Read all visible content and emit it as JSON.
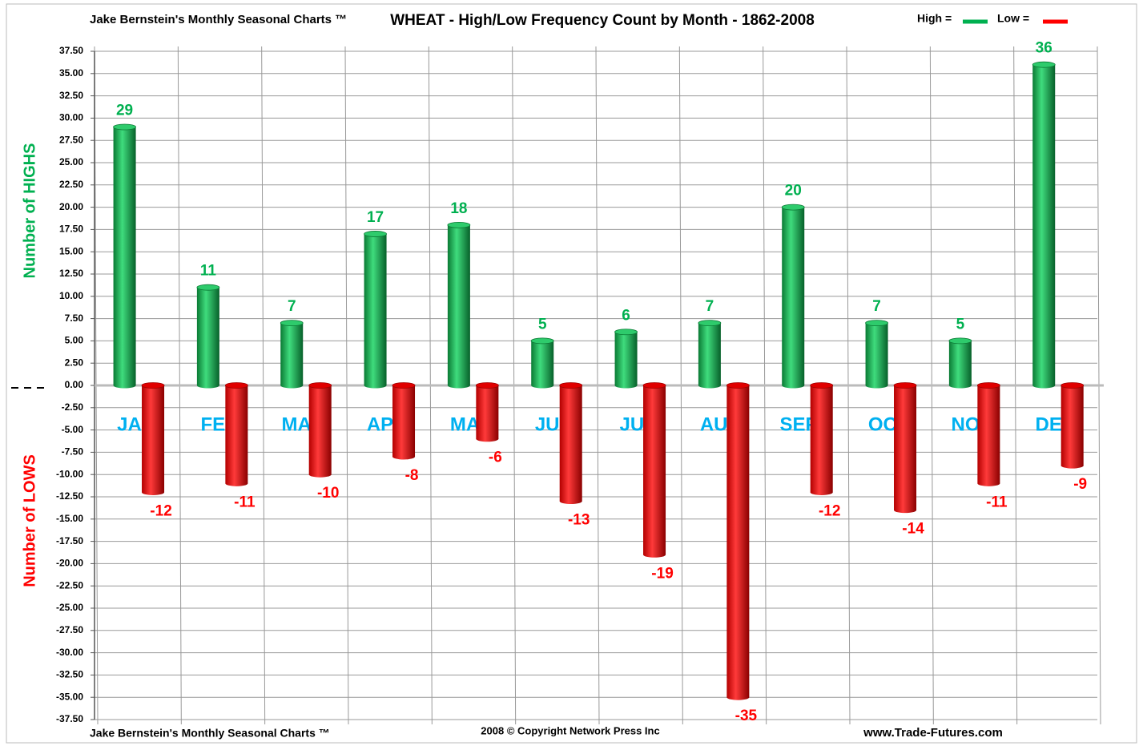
{
  "chart_data": {
    "type": "bar",
    "header": "Jake Bernstein's  Monthly Seasonal Charts ™",
    "title": "WHEAT - High/Low Frequency Count by Month - 1862-2008",
    "ylabels": [
      "Number of  HIGHS",
      "Number of  LOWS"
    ],
    "footer": [
      "Jake Bernstein's  Monthly Seasonal Charts ™",
      "2008  © Copyright Network Press Inc",
      "www.Trade-Futures.com"
    ],
    "categories": [
      "JAN",
      "FEB",
      "MAR",
      "APR",
      "MAY",
      "JUN",
      "JUL",
      "AUG",
      "SEPT",
      "OCT",
      "NOV",
      "DEC"
    ],
    "category_color": "#00b0f0",
    "series": [
      {
        "name": "High =",
        "color": "#00b050",
        "values": [
          29,
          11,
          7,
          17,
          18,
          5,
          6,
          7,
          20,
          7,
          5,
          36
        ]
      },
      {
        "name": "Low =",
        "color": "#ff0000",
        "values": [
          -12,
          -11,
          -10,
          -8,
          -6,
          -13,
          -19,
          -35,
          -12,
          -14,
          -11,
          -9
        ]
      }
    ],
    "ylim": [
      -37.5,
      37.5
    ],
    "yticks": [
      {
        "value": 37.5,
        "label": "37.50"
      },
      {
        "value": 35,
        "label": "35.00"
      },
      {
        "value": 32.5,
        "label": "32.50"
      },
      {
        "value": 30,
        "label": "30.00"
      },
      {
        "value": 27.5,
        "label": "27.50"
      },
      {
        "value": 25,
        "label": "25.00"
      },
      {
        "value": 22.5,
        "label": "22.50"
      },
      {
        "value": 20,
        "label": "20.00"
      },
      {
        "value": 17.5,
        "label": "17.50"
      },
      {
        "value": 15,
        "label": "15.00"
      },
      {
        "value": 12.5,
        "label": "12.50"
      },
      {
        "value": 10,
        "label": "10.00"
      },
      {
        "value": 7.5,
        "label": "7.50"
      },
      {
        "value": 5,
        "label": "5.00"
      },
      {
        "value": 2.5,
        "label": "2.50"
      },
      {
        "value": 0,
        "label": "0.00"
      },
      {
        "value": -2.5,
        "label": "-2.50"
      },
      {
        "value": -5,
        "label": "-5.00"
      },
      {
        "value": -7.5,
        "label": "-7.50"
      },
      {
        "value": -10,
        "label": "-10.00"
      },
      {
        "value": -12.5,
        "label": "-12.50"
      },
      {
        "value": -15,
        "label": "-15.00"
      },
      {
        "value": -17.5,
        "label": "-17.50"
      },
      {
        "value": -20,
        "label": "-20.00"
      },
      {
        "value": -22.5,
        "label": "-22.50"
      },
      {
        "value": -25,
        "label": "-25.00"
      },
      {
        "value": -27.5,
        "label": "-27.50"
      },
      {
        "value": -30,
        "label": "-30.00"
      },
      {
        "value": -32.5,
        "label": "-32.50"
      },
      {
        "value": -35,
        "label": "-35.00"
      },
      {
        "value": -37.5,
        "label": "-37.50"
      }
    ],
    "grid": true
  }
}
